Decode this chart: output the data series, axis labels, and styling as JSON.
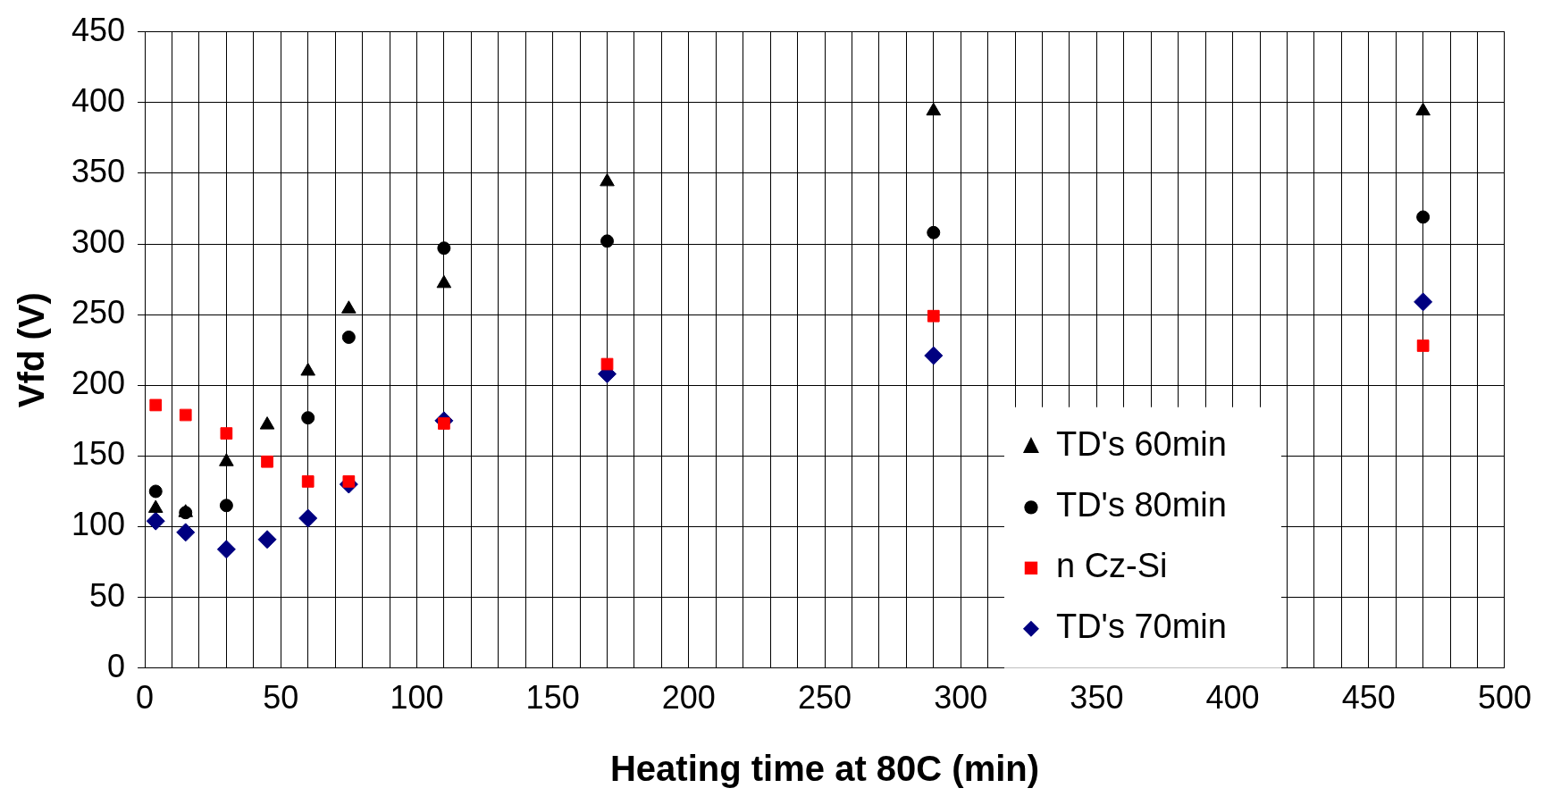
{
  "chart_data": {
    "type": "scatter",
    "xlabel": "Heating time at 80C (min)",
    "ylabel": "Vfd (V)",
    "xlim": [
      0,
      500
    ],
    "ylim": [
      0,
      450
    ],
    "xticks": [
      0,
      {
        "value": 10,
        "label": null
      },
      {
        "value": 20,
        "label": null
      },
      {
        "value": 30,
        "label": null
      },
      {
        "value": 40,
        "label": null
      },
      50,
      {
        "value": 60,
        "label": null
      },
      {
        "value": 70,
        "label": null
      },
      {
        "value": 80,
        "label": null
      },
      {
        "value": 90,
        "label": null
      },
      100,
      {
        "value": 110,
        "label": null
      },
      {
        "value": 120,
        "label": null
      },
      {
        "value": 130,
        "label": null
      },
      {
        "value": 140,
        "label": null
      },
      150,
      {
        "value": 160,
        "label": null
      },
      {
        "value": 170,
        "label": null
      },
      {
        "value": 180,
        "label": null
      },
      {
        "value": 190,
        "label": null
      },
      200,
      {
        "value": 210,
        "label": null
      },
      {
        "value": 220,
        "label": null
      },
      {
        "value": 230,
        "label": null
      },
      {
        "value": 240,
        "label": null
      },
      250,
      {
        "value": 260,
        "label": null
      },
      {
        "value": 270,
        "label": null
      },
      {
        "value": 280,
        "label": null
      },
      {
        "value": 290,
        "label": null
      },
      300,
      {
        "value": 310,
        "label": null
      },
      {
        "value": 320,
        "label": null
      },
      {
        "value": 330,
        "label": null
      },
      {
        "value": 340,
        "label": null
      },
      350,
      {
        "value": 360,
        "label": null
      },
      {
        "value": 370,
        "label": null
      },
      {
        "value": 380,
        "label": null
      },
      {
        "value": 390,
        "label": null
      },
      400,
      {
        "value": 410,
        "label": null
      },
      {
        "value": 420,
        "label": null
      },
      {
        "value": 430,
        "label": null
      },
      {
        "value": 440,
        "label": null
      },
      450,
      {
        "value": 460,
        "label": null
      },
      {
        "value": 470,
        "label": null
      },
      {
        "value": 480,
        "label": null
      },
      {
        "value": 490,
        "label": null
      },
      500
    ],
    "yticks": [
      0,
      50,
      100,
      150,
      200,
      250,
      300,
      350,
      400,
      450
    ],
    "grid": true,
    "legend": "bottom right",
    "series": [
      {
        "name": "TD's 60min",
        "color": "#000000",
        "marker": "triangle",
        "x": [
          4,
          15,
          30,
          45,
          60,
          75,
          110,
          170,
          290,
          470
        ],
        "values": [
          113,
          110,
          146,
          172,
          210,
          254,
          272,
          344,
          394,
          394
        ]
      },
      {
        "name": "TD's 80min",
        "color": "#000000",
        "marker": "circle",
        "x": [
          4,
          15,
          30,
          60,
          75,
          110,
          170,
          290,
          470
        ],
        "values": [
          125,
          110,
          115,
          177,
          234,
          297,
          302,
          308,
          319
        ]
      },
      {
        "name": "n Cz-Si",
        "color": "#ff0000",
        "marker": "square",
        "x": [
          4,
          15,
          30,
          45,
          60,
          75,
          110,
          170,
          290,
          470
        ],
        "values": [
          186,
          179,
          166,
          146,
          132,
          132,
          173,
          215,
          249,
          228
        ]
      },
      {
        "name": "TD's 70min",
        "color": "#000080",
        "marker": "diamond",
        "x": [
          4,
          15,
          30,
          45,
          60,
          75,
          110,
          170,
          290,
          470
        ],
        "values": [
          104,
          96,
          84,
          91,
          106,
          130,
          175,
          208,
          221,
          259
        ]
      }
    ]
  }
}
